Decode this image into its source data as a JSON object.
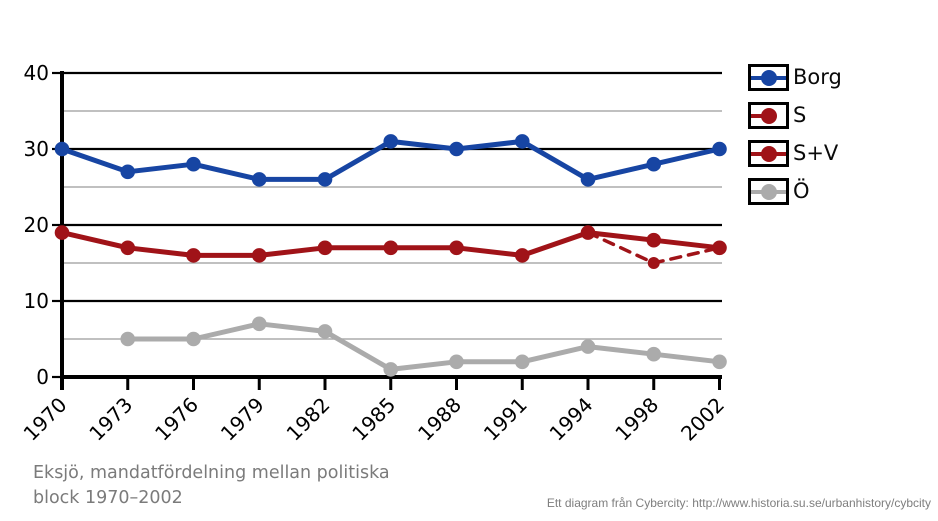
{
  "chart_data": {
    "type": "line",
    "title": "Eksjö, mandatfördelning mellan politiska block 1970–2002",
    "categories": [
      "1970",
      "1973",
      "1976",
      "1979",
      "1982",
      "1985",
      "1988",
      "1991",
      "1994",
      "1998",
      "2002"
    ],
    "xlabel": "",
    "ylabel": "",
    "ylim": [
      0,
      40
    ],
    "y_major_ticks": [
      0,
      10,
      20,
      30,
      40
    ],
    "y_minor_gridlines": [
      5,
      15,
      25,
      35
    ],
    "grid": true,
    "legend_position": "right",
    "series": [
      {
        "name": "Borg",
        "color": "#1745A3",
        "style": "solid",
        "values": [
          30,
          27,
          28,
          26,
          26,
          31,
          30,
          31,
          26,
          28,
          30
        ]
      },
      {
        "name": "S",
        "color": "#A01318",
        "style": "dashed",
        "values": [
          null,
          null,
          null,
          null,
          null,
          null,
          null,
          null,
          19,
          15,
          17
        ]
      },
      {
        "name": "S+V",
        "color": "#A01318",
        "style": "solid",
        "values": [
          19,
          17,
          16,
          16,
          17,
          17,
          17,
          16,
          19,
          18,
          17
        ]
      },
      {
        "name": "Ö",
        "color": "#ABABAB",
        "style": "solid",
        "values": [
          null,
          5,
          5,
          7,
          6,
          1,
          2,
          2,
          4,
          3,
          2
        ]
      }
    ]
  },
  "legend": {
    "entries": [
      {
        "label": "Borg",
        "color": "#1745A3",
        "line": "full"
      },
      {
        "label": "S",
        "color": "#A01318",
        "line": "left-half"
      },
      {
        "label": "S+V",
        "color": "#A01318",
        "line": "full"
      },
      {
        "label": "Ö",
        "color": "#ABABAB",
        "line": "full"
      }
    ]
  },
  "caption": {
    "line1": "Eksjö, mandatfördelning mellan politiska",
    "line2": "block 1970–2002"
  },
  "attribution": "Ett diagram från Cybercity: http://www.historia.su.se/urbanhistory/cybcity",
  "colors": {
    "axis": "#000000",
    "minor_grid": "#ABABAB",
    "tick_label": "#000000",
    "caption_text": "#7b7b7b",
    "attribution_text": "#7e7e7e",
    "background": "#ffffff"
  }
}
